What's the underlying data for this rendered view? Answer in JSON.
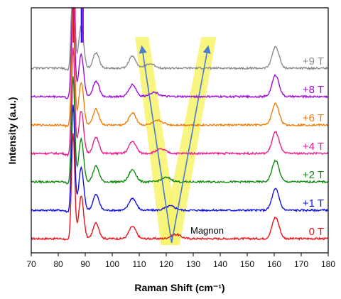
{
  "chart_data": {
    "type": "line",
    "xlabel": "Raman Shift (cm⁻¹)",
    "ylabel": "Intensity (a.u.)",
    "xlim": [
      70,
      180
    ],
    "xticks": [
      70,
      80,
      90,
      100,
      110,
      120,
      130,
      140,
      150,
      160,
      170,
      180
    ],
    "y_ticks_shown": false,
    "legend": "labels at right end of each trace",
    "series": [
      {
        "name": "0 T",
        "color": "#e8131b",
        "offset": 0,
        "magnon_cm": 123.5
      },
      {
        "name": "+1 T",
        "color": "#1212e6",
        "offset": 1,
        "magnon_cm": 121.5
      },
      {
        "name": "+2 T",
        "color": "#138a13",
        "offset": 2,
        "magnon_cm": 120.0
      },
      {
        "name": "+4 T",
        "color": "#ec1e8c",
        "offset": 3,
        "magnon_cm": 118.0
      },
      {
        "name": "+6 T",
        "color": "#f07f0a",
        "offset": 4,
        "magnon_cm": 117.0
      },
      {
        "name": "+8 T",
        "color": "#9b10d8",
        "offset": 5,
        "magnon_cm": 115.5
      },
      {
        "name": "+9 T",
        "color": "#8c8c8c",
        "offset": 6,
        "magnon_cm": 114.0
      }
    ],
    "peaks_cm": [
      {
        "center": 88.5,
        "note": "strong, clipped"
      },
      {
        "center": 94.0
      },
      {
        "center": 107.5
      },
      {
        "center": 160.5
      }
    ],
    "annotations": [
      {
        "text": "Magnon"
      }
    ],
    "highlight_color": "#f7f36b",
    "arrow_color": "#4a7bd1"
  }
}
